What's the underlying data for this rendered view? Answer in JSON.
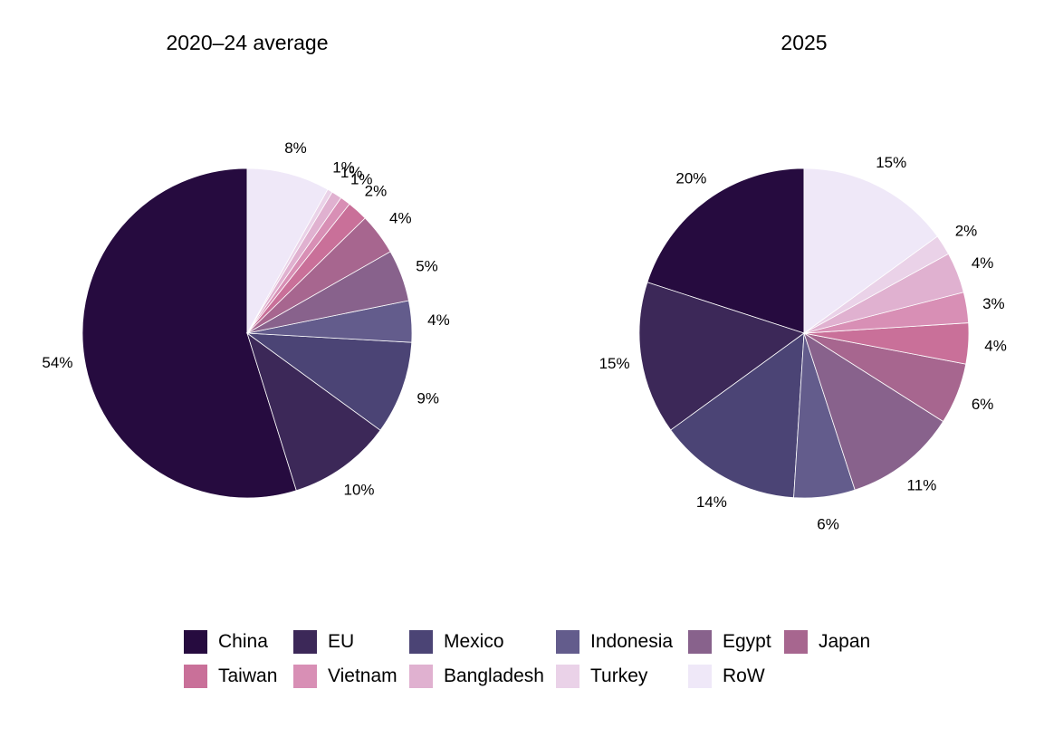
{
  "chart_data": [
    {
      "type": "pie",
      "title": "2020–24 average",
      "slices": [
        {
          "name": "China",
          "value": 54,
          "label": "54%"
        },
        {
          "name": "EU",
          "value": 10,
          "label": "10%"
        },
        {
          "name": "Mexico",
          "value": 9,
          "label": "9%"
        },
        {
          "name": "Indonesia",
          "value": 4,
          "label": "4%"
        },
        {
          "name": "Egypt",
          "value": 5,
          "label": "5%"
        },
        {
          "name": "Japan",
          "value": 4,
          "label": "4%"
        },
        {
          "name": "Taiwan",
          "value": 2,
          "label": "2%"
        },
        {
          "name": "Vietnam",
          "value": 1,
          "label": "1%"
        },
        {
          "name": "Bangladesh",
          "value": 1,
          "label": "1%"
        },
        {
          "name": "Turkey",
          "value": 0.5,
          "label": "1%"
        },
        {
          "name": "RoW",
          "value": 8,
          "label": "8%"
        }
      ]
    },
    {
      "type": "pie",
      "title": "2025",
      "slices": [
        {
          "name": "China",
          "value": 20,
          "label": "20%"
        },
        {
          "name": "EU",
          "value": 15,
          "label": "15%"
        },
        {
          "name": "Mexico",
          "value": 14,
          "label": "14%"
        },
        {
          "name": "Indonesia",
          "value": 6,
          "label": "6%"
        },
        {
          "name": "Egypt",
          "value": 11,
          "label": "11%"
        },
        {
          "name": "Japan",
          "value": 6,
          "label": "6%"
        },
        {
          "name": "Taiwan",
          "value": 4,
          "label": "4%"
        },
        {
          "name": "Vietnam",
          "value": 3,
          "label": "3%"
        },
        {
          "name": "Bangladesh",
          "value": 4,
          "label": "4%"
        },
        {
          "name": "Turkey",
          "value": 2,
          "label": "2%"
        },
        {
          "name": "RoW",
          "value": 15,
          "label": "15%"
        }
      ]
    }
  ],
  "legend": {
    "placement": "bottom",
    "items": [
      {
        "name": "China",
        "color": "#260b3f"
      },
      {
        "name": "EU",
        "color": "#3c2858"
      },
      {
        "name": "Mexico",
        "color": "#4b4475"
      },
      {
        "name": "Indonesia",
        "color": "#635c8c"
      },
      {
        "name": "Egypt",
        "color": "#88628c"
      },
      {
        "name": "Japan",
        "color": "#a7668f"
      },
      {
        "name": "Taiwan",
        "color": "#c97099"
      },
      {
        "name": "Vietnam",
        "color": "#d88fb5"
      },
      {
        "name": "Bangladesh",
        "color": "#e0b1d0"
      },
      {
        "name": "Turkey",
        "color": "#ead2e8"
      },
      {
        "name": "RoW",
        "color": "#efe8f8"
      }
    ]
  }
}
